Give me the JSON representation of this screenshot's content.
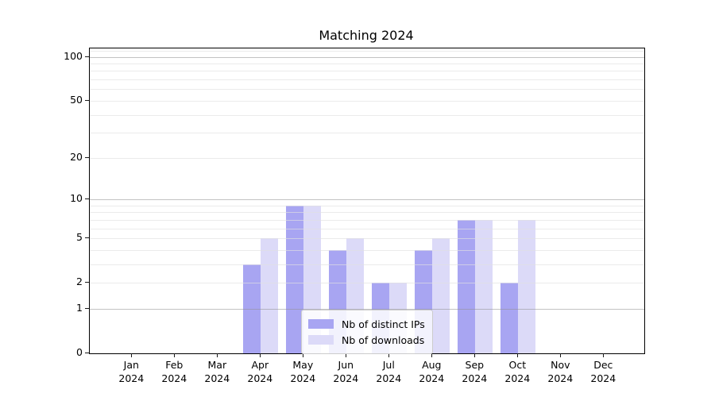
{
  "chart_data": {
    "type": "bar",
    "title": "Matching 2024",
    "categories": [
      "Jan",
      "Feb",
      "Mar",
      "Apr",
      "May",
      "Jun",
      "Jul",
      "Aug",
      "Sep",
      "Oct",
      "Nov",
      "Dec"
    ],
    "category_year": "2024",
    "series": [
      {
        "name": "Nb of distinct IPs",
        "color": "#a8a5f2",
        "values": [
          0,
          0,
          0,
          3,
          9,
          4,
          2,
          4,
          7,
          2,
          0,
          0
        ]
      },
      {
        "name": "Nb of downloads",
        "color": "#dcdaf8",
        "values": [
          0,
          0,
          0,
          5,
          9,
          5,
          2,
          5,
          7,
          7,
          0,
          0
        ]
      }
    ],
    "xlabel": "",
    "ylabel": "",
    "yscale": "log1p",
    "ylim": [
      0,
      114
    ],
    "yticks": [
      0,
      1,
      2,
      5,
      10,
      20,
      50,
      100
    ],
    "major_grid_values": [
      1,
      10,
      100
    ],
    "minor_grid_values": [
      2,
      3,
      4,
      5,
      6,
      7,
      8,
      9,
      20,
      30,
      40,
      50,
      60,
      70,
      80,
      90,
      110
    ],
    "grid": true,
    "legend_position": "lower center"
  }
}
